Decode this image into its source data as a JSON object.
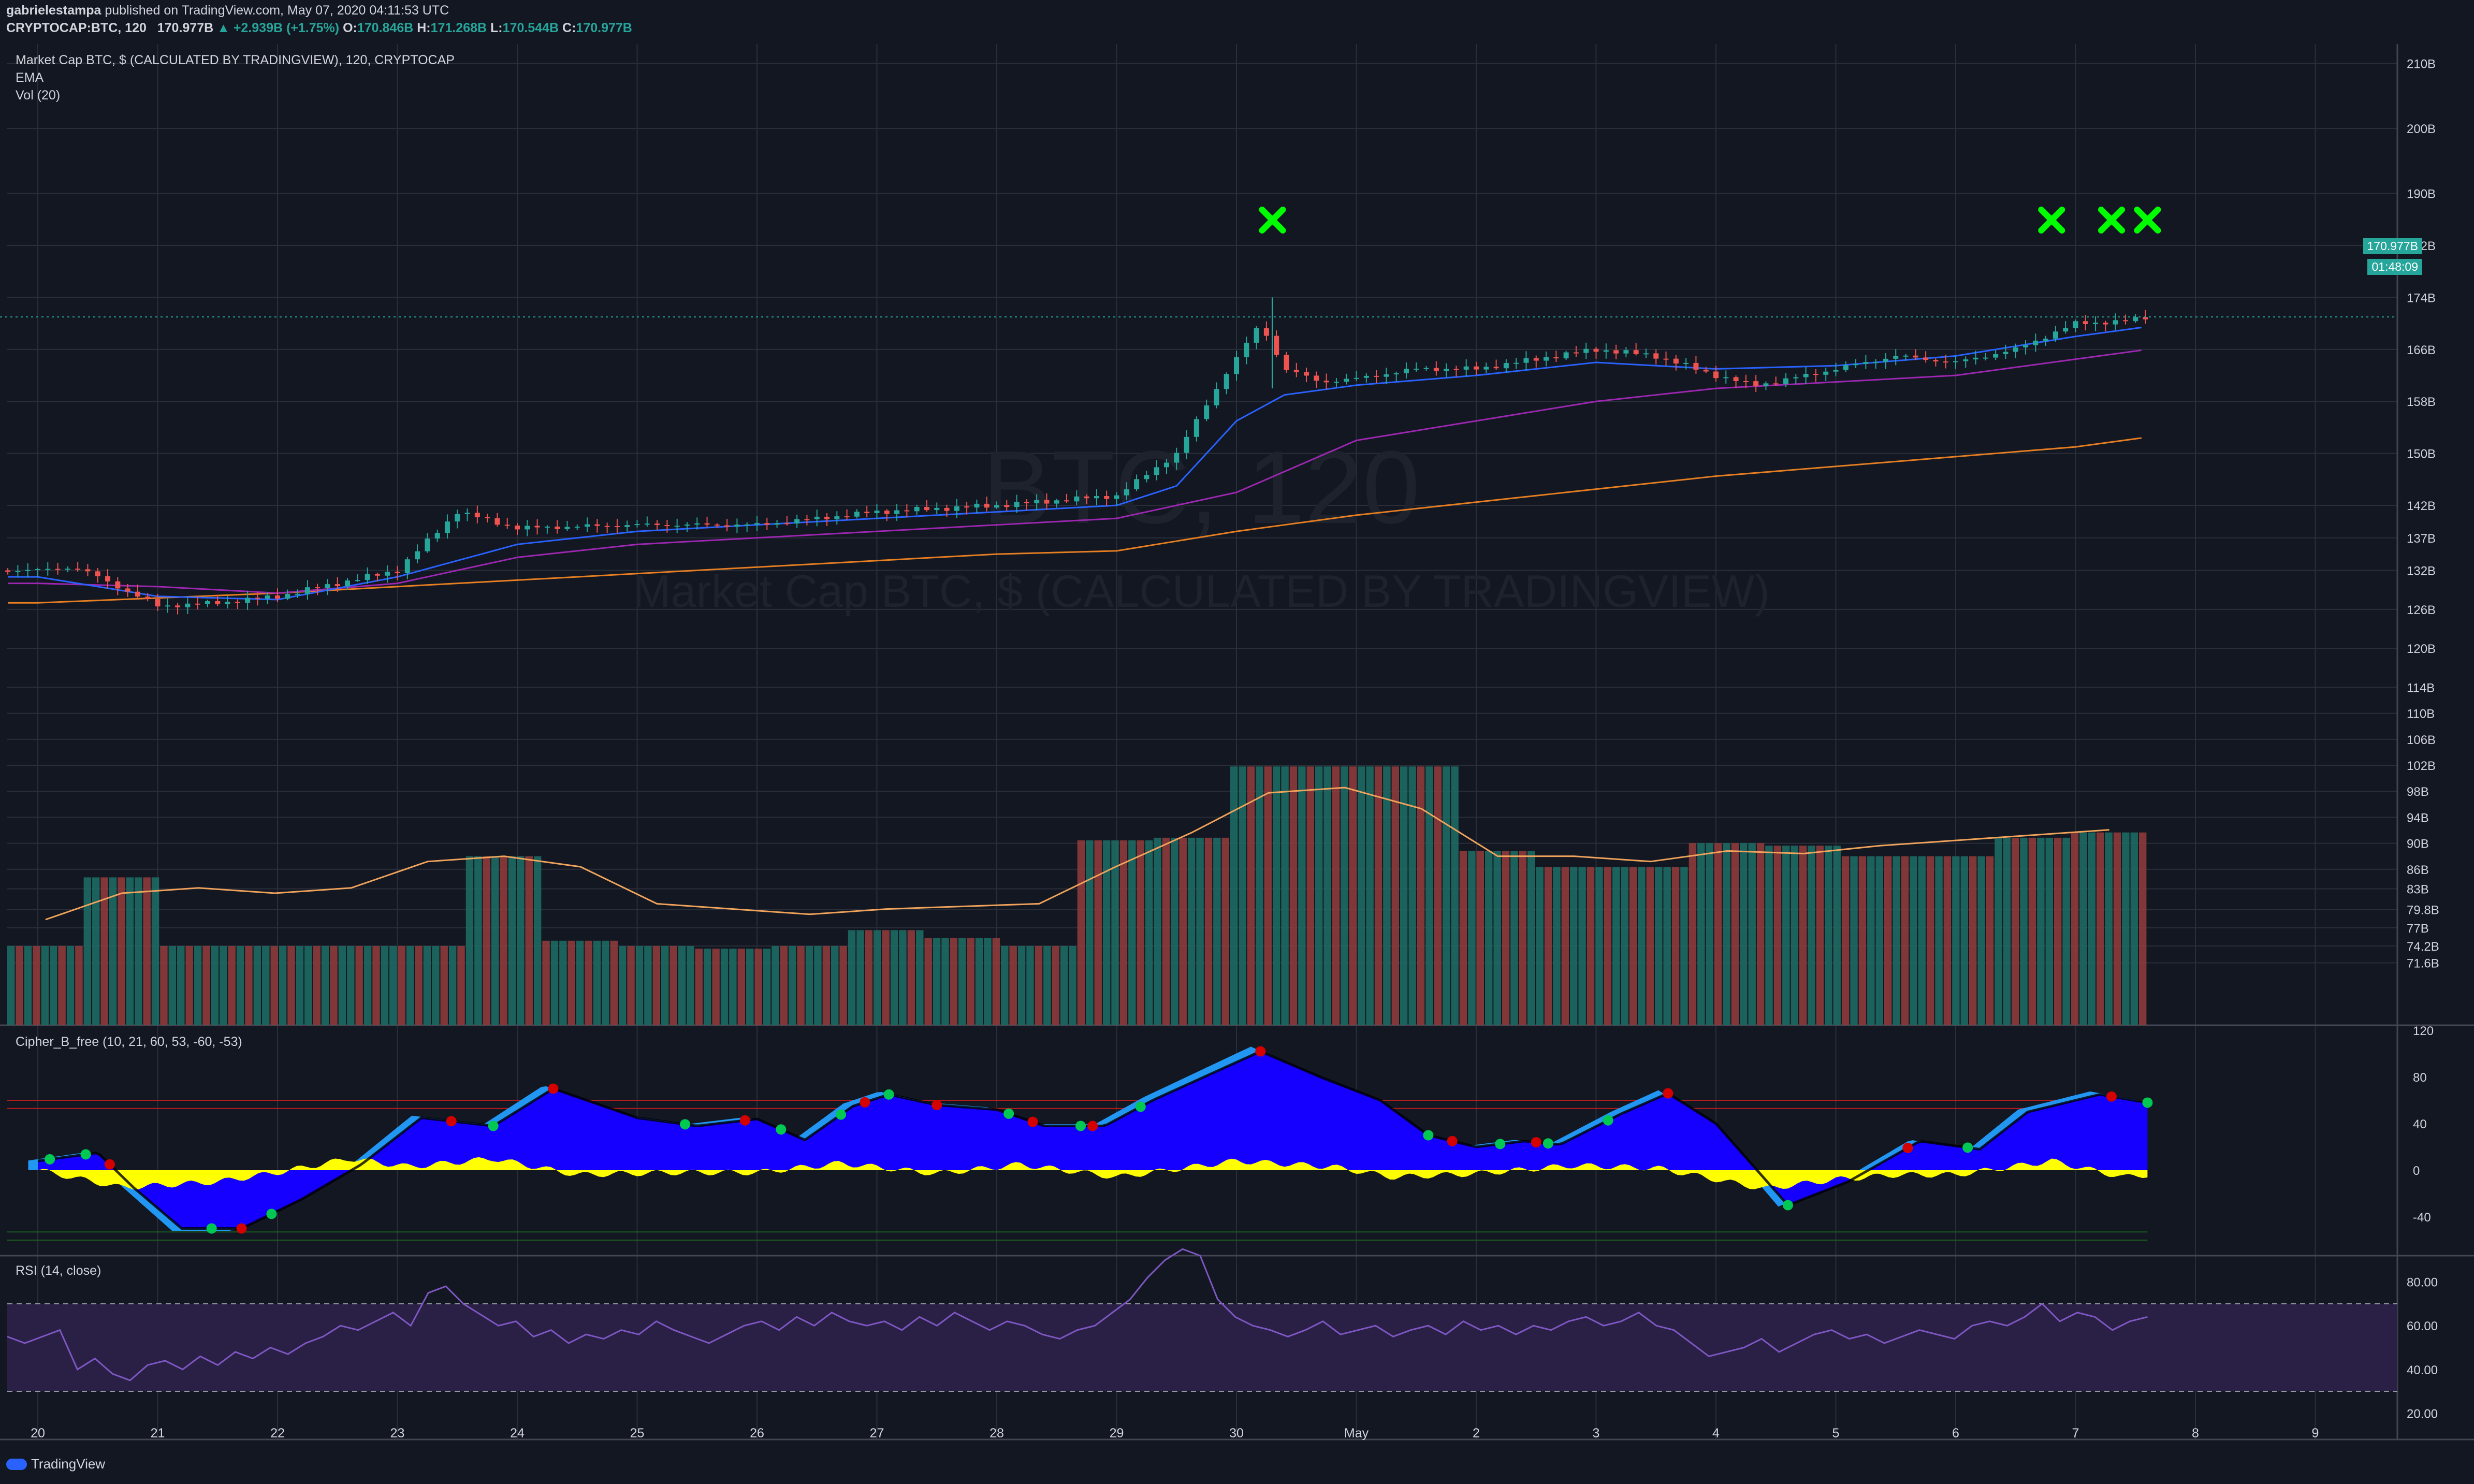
{
  "header": {
    "author": "gabrielestampa",
    "published": "published on TradingView.com, May 07, 2020 04:11:53 UTC",
    "symbol": "CRYPTOCAP:BTC, 120",
    "last": "170.977B",
    "change": "▲ +2.939B (+1.75%)",
    "o_label": "O:",
    "o": "170.846B",
    "h_label": "H:",
    "h": "171.268B",
    "l_label": "L:",
    "l": "170.544B",
    "c_label": "C:",
    "c": "170.977B"
  },
  "legend": {
    "main": "Market Cap BTC, $ (CALCULATED BY TRADINGVIEW), 120, CRYPTOCAP",
    "ema": "EMA",
    "vol": "Vol (20)",
    "cipher": "Cipher_B_free (10, 21, 60, 53, -60, -53)",
    "rsi": "RSI (14, close)"
  },
  "watermark": {
    "big": "BTC, 120",
    "small": "Market Cap BTC, $ (CALCULATED BY TRADINGVIEW)"
  },
  "price_tags": {
    "last": "170.977B",
    "countdown": "01:48:09"
  },
  "brand": "TradingView",
  "colors": {
    "background": "#131722",
    "grid": "#2a2e39",
    "up": "#26a69a",
    "down": "#ef5350",
    "ema_fast": "#2962ff",
    "ema_mid": "#9c27b0",
    "ema_slow": "#e67e22",
    "cipher_wave": "#1500ff",
    "cipher_light": "#2196f3",
    "cipher_money": "#ffff00",
    "rsi": "#7e57c2",
    "marker": "#00ff00"
  },
  "chart_data": [
    {
      "type": "candlestick",
      "title": "Market Cap BTC, $ (CALCULATED BY TRADINGVIEW), 120, CRYPTOCAP",
      "x_ticks": [
        "20",
        "21",
        "22",
        "23",
        "24",
        "25",
        "26",
        "27",
        "28",
        "29",
        "30",
        "May",
        "2",
        "3",
        "4",
        "5",
        "6",
        "7",
        "8",
        "9"
      ],
      "price_ticks": [
        "210B",
        "200B",
        "190B",
        "182B",
        "174B",
        "166B",
        "158B",
        "150B",
        "142B",
        "137B",
        "132B",
        "126B",
        "120B",
        "114B",
        "110B",
        "106B",
        "102B",
        "98B",
        "94B",
        "90B",
        "86B",
        "83B",
        "79.8B",
        "77B",
        "74.2B",
        "71.6B"
      ],
      "price_ylim_billions": [
        62,
        213
      ],
      "price_path_billions": [
        [
          0,
          132
        ],
        [
          0.3,
          132.5
        ],
        [
          0.5,
          131
        ],
        [
          1,
          126.5
        ],
        [
          1.5,
          127
        ],
        [
          2,
          128
        ],
        [
          2.5,
          130
        ],
        [
          3,
          132
        ],
        [
          3.5,
          141
        ],
        [
          4,
          138.5
        ],
        [
          5,
          139
        ],
        [
          6,
          139
        ],
        [
          7,
          141
        ],
        [
          8,
          142
        ],
        [
          9,
          143.5
        ],
        [
          9.5,
          150
        ],
        [
          9.9,
          162
        ],
        [
          10.2,
          170
        ],
        [
          10.4,
          163
        ],
        [
          10.7,
          161
        ],
        [
          11,
          161.5
        ],
        [
          11.5,
          163
        ],
        [
          12,
          163
        ],
        [
          13,
          166
        ],
        [
          13.5,
          165
        ],
        [
          14,
          162
        ],
        [
          14.3,
          160.5
        ],
        [
          14.5,
          161
        ],
        [
          15,
          163
        ],
        [
          15.5,
          165
        ],
        [
          16,
          164
        ],
        [
          16.5,
          166
        ],
        [
          17,
          170
        ],
        [
          17.4,
          170.3
        ],
        [
          17.6,
          171
        ]
      ],
      "ema_fast_billions": [
        [
          0,
          131
        ],
        [
          1,
          128
        ],
        [
          2,
          127.5
        ],
        [
          3,
          131
        ],
        [
          4,
          136
        ],
        [
          5,
          138
        ],
        [
          6,
          139
        ],
        [
          7,
          140
        ],
        [
          8,
          141
        ],
        [
          9,
          142
        ],
        [
          9.5,
          145
        ],
        [
          10,
          155
        ],
        [
          10.4,
          159
        ],
        [
          11,
          160.5
        ],
        [
          12,
          162
        ],
        [
          13,
          164
        ],
        [
          14,
          163
        ],
        [
          15,
          163.5
        ],
        [
          16,
          165
        ],
        [
          17,
          168
        ],
        [
          17.6,
          169.5
        ]
      ],
      "ema_mid_billions": [
        [
          0,
          130
        ],
        [
          1,
          129.5
        ],
        [
          2,
          128.5
        ],
        [
          3,
          130
        ],
        [
          4,
          134
        ],
        [
          5,
          136
        ],
        [
          6,
          137
        ],
        [
          7,
          138
        ],
        [
          8,
          139
        ],
        [
          9,
          140
        ],
        [
          10,
          144
        ],
        [
          11,
          152
        ],
        [
          12,
          155
        ],
        [
          13,
          158
        ],
        [
          14,
          160
        ],
        [
          15,
          161
        ],
        [
          16,
          162
        ],
        [
          17,
          164.5
        ],
        [
          17.6,
          166
        ]
      ],
      "ema_slow_billions": [
        [
          0,
          127
        ],
        [
          2,
          128.5
        ],
        [
          4,
          130.5
        ],
        [
          6,
          132.5
        ],
        [
          8,
          134.5
        ],
        [
          9,
          135
        ],
        [
          10,
          138
        ],
        [
          11,
          140.5
        ],
        [
          12,
          142.5
        ],
        [
          13,
          144.5
        ],
        [
          14,
          146.5
        ],
        [
          15,
          148
        ],
        [
          16,
          149.5
        ],
        [
          17,
          151
        ],
        [
          17.6,
          152.5
        ]
      ],
      "volume_heights": [
        0.3,
        0.56,
        0.3,
        0.3,
        0.3,
        0.3,
        0.64,
        0.32,
        0.3,
        0.29,
        0.3,
        0.36,
        0.33,
        0.3,
        0.7,
        0.71,
        0.98,
        0.98,
        0.98,
        0.66,
        0.6,
        0.6,
        0.69,
        0.68,
        0.64,
        0.64,
        0.71,
        0.73
      ],
      "volume_ma": [
        0.4,
        0.5,
        0.52,
        0.5,
        0.52,
        0.62,
        0.64,
        0.6,
        0.46,
        0.44,
        0.42,
        0.44,
        0.45,
        0.46,
        0.6,
        0.73,
        0.88,
        0.9,
        0.82,
        0.64,
        0.64,
        0.62,
        0.66,
        0.65,
        0.68,
        0.7,
        0.72,
        0.74
      ],
      "markers_x": [
        10.3,
        16.8,
        17.3,
        17.6
      ]
    },
    {
      "type": "area",
      "title": "Cipher_B_free (10, 21, 60, 53, -60, -53)",
      "y_ticks": [
        "120",
        "80",
        "40",
        "0",
        "-40"
      ],
      "ylim": [
        -60,
        120
      ],
      "wave_points": [
        [
          0,
          8
        ],
        [
          0.5,
          15
        ],
        [
          0.8,
          -15
        ],
        [
          1.2,
          -50
        ],
        [
          1.7,
          -50
        ],
        [
          2.2,
          -25
        ],
        [
          2.7,
          5
        ],
        [
          3.2,
          45
        ],
        [
          3.8,
          38
        ],
        [
          4.3,
          70
        ],
        [
          5,
          45
        ],
        [
          5.5,
          38
        ],
        [
          6,
          44
        ],
        [
          6.4,
          26
        ],
        [
          6.8,
          55
        ],
        [
          7.1,
          65
        ],
        [
          7.5,
          56
        ],
        [
          8,
          52
        ],
        [
          8.4,
          38
        ],
        [
          8.9,
          38
        ],
        [
          9.3,
          60
        ],
        [
          10.2,
          102
        ],
        [
          10.7,
          80
        ],
        [
          11.2,
          60
        ],
        [
          11.6,
          30
        ],
        [
          12,
          20
        ],
        [
          12.4,
          25
        ],
        [
          12.7,
          22
        ],
        [
          13.2,
          48
        ],
        [
          13.6,
          66
        ],
        [
          14,
          40
        ],
        [
          14.6,
          -30
        ],
        [
          15.1,
          -10
        ],
        [
          15.7,
          25
        ],
        [
          16.2,
          18
        ],
        [
          16.6,
          50
        ],
        [
          17.2,
          65
        ],
        [
          17.6,
          58
        ]
      ],
      "money_flow": [
        [
          0,
          0
        ],
        [
          0.7,
          -15
        ],
        [
          1.5,
          -10
        ],
        [
          2,
          -2
        ],
        [
          2.6,
          10
        ],
        [
          3.1,
          3
        ],
        [
          3.8,
          10
        ],
        [
          4.5,
          -4
        ],
        [
          5.3,
          -2
        ],
        [
          6,
          -2
        ],
        [
          6.7,
          6
        ],
        [
          7.5,
          -3
        ],
        [
          8.2,
          5
        ],
        [
          9,
          -6
        ],
        [
          10,
          8
        ],
        [
          10.8,
          3
        ],
        [
          11.3,
          -6
        ],
        [
          12,
          -3
        ],
        [
          12.8,
          4
        ],
        [
          13.5,
          2
        ],
        [
          14,
          -8
        ],
        [
          14.4,
          -16
        ],
        [
          15,
          -8
        ],
        [
          15.5,
          -4
        ],
        [
          16,
          -4
        ],
        [
          16.8,
          8
        ],
        [
          17.4,
          -6
        ],
        [
          17.6,
          -4
        ]
      ],
      "green_dots_x": [
        0.1,
        0.4,
        1.45,
        1.95,
        3.8,
        5.4,
        6.2,
        6.7,
        7.1,
        8.1,
        8.7,
        9.2,
        11.6,
        12.2,
        12.6,
        13.1,
        14.6,
        16.1,
        17.6
      ],
      "red_dots_x": [
        0.6,
        1.7,
        3.45,
        4.3,
        5.9,
        6.9,
        7.5,
        8.3,
        8.8,
        10.2,
        11.8,
        12.5,
        13.6,
        15.6,
        17.3
      ]
    },
    {
      "type": "line",
      "title": "RSI (14, close)",
      "y_ticks": [
        "80.00",
        "60.00",
        "40.00",
        "20.00"
      ],
      "ylim": [
        8,
        92
      ],
      "bands": [
        30,
        70
      ],
      "values": [
        55,
        52,
        55,
        58,
        40,
        45,
        38,
        35,
        42,
        44,
        40,
        46,
        42,
        48,
        45,
        50,
        47,
        52,
        55,
        60,
        58,
        62,
        66,
        60,
        75,
        78,
        70,
        65,
        60,
        62,
        55,
        58,
        52,
        56,
        54,
        58,
        56,
        62,
        58,
        55,
        52,
        56,
        60,
        62,
        58,
        64,
        60,
        66,
        62,
        60,
        62,
        58,
        64,
        60,
        66,
        62,
        58,
        62,
        60,
        56,
        54,
        58,
        60,
        66,
        72,
        82,
        90,
        95,
        92,
        72,
        64,
        60,
        58,
        55,
        58,
        62,
        56,
        58,
        60,
        55,
        58,
        60,
        56,
        62,
        58,
        60,
        56,
        60,
        58,
        62,
        64,
        60,
        62,
        66,
        60,
        58,
        52,
        46,
        48,
        50,
        54,
        48,
        52,
        56,
        58,
        54,
        56,
        52,
        55,
        58,
        56,
        54,
        60,
        62,
        60,
        64,
        70,
        62,
        66,
        64,
        58,
        62,
        64
      ]
    }
  ]
}
